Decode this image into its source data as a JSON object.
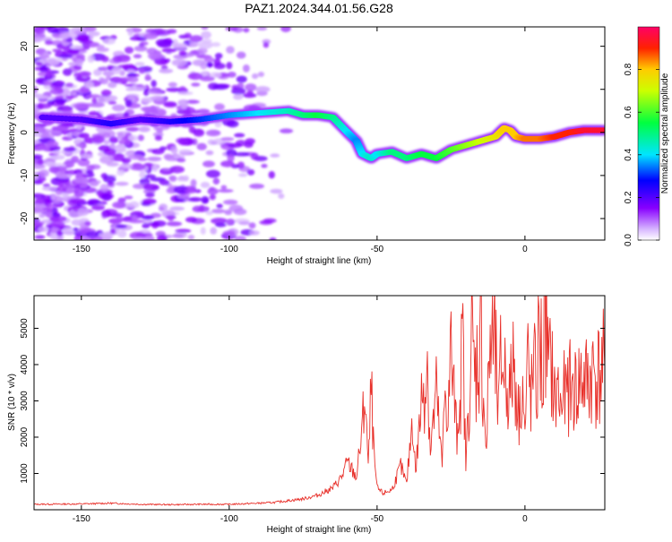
{
  "title": "PAZ1.2024.344.01.56.G28",
  "chart_data": [
    {
      "type": "heatmap",
      "name": "spectrogram",
      "xlabel": "Height of straight line (km)",
      "ylabel": "Frequency (Hz)",
      "xlim": [
        -166,
        27
      ],
      "ylim": [
        -25,
        24.5
      ],
      "xticks": [
        -150,
        -100,
        -50,
        0
      ],
      "yticks": [
        -20,
        -10,
        0,
        10,
        20
      ],
      "colorbar": {
        "label": "Normalized spectral amplitude",
        "range": [
          0,
          1
        ],
        "ticks": [
          0.0,
          0.2,
          0.4,
          0.6,
          0.8
        ]
      },
      "ridge": {
        "x": [
          -163,
          -150,
          -140,
          -130,
          -120,
          -110,
          -100,
          -90,
          -80,
          -75,
          -70,
          -65,
          -60,
          -57,
          -55,
          -52,
          -50,
          -45,
          -40,
          -35,
          -30,
          -25,
          -20,
          -15,
          -10,
          -7,
          -5,
          -3,
          0,
          5,
          10,
          15,
          20,
          27
        ],
        "freq": [
          3.5,
          3,
          2,
          3,
          2.5,
          3,
          4,
          4.5,
          5,
          4,
          4,
          3.5,
          0,
          -2,
          -5,
          -6,
          -5,
          -4.5,
          -6,
          -5,
          -6,
          -4,
          -3,
          -2,
          -1,
          1,
          0.5,
          -1,
          -1.5,
          -1.5,
          -1,
          0,
          0.5,
          0.5
        ],
        "amplitude": [
          0.2,
          0.2,
          0.25,
          0.2,
          0.25,
          0.3,
          0.35,
          0.4,
          0.45,
          0.5,
          0.55,
          0.5,
          0.4,
          0.35,
          0.4,
          0.45,
          0.4,
          0.5,
          0.5,
          0.55,
          0.55,
          0.6,
          0.65,
          0.7,
          0.75,
          0.8,
          0.8,
          0.8,
          0.85,
          0.85,
          0.9,
          0.9,
          0.95,
          0.95
        ]
      }
    },
    {
      "type": "line",
      "name": "snr",
      "xlabel": "Height of straight line (km)",
      "ylabel": "SNR (10 * v/v)",
      "xlim": [
        -166,
        27
      ],
      "ylim": [
        0,
        5900
      ],
      "xticks": [
        -150,
        -100,
        -50,
        0
      ],
      "yticks": [
        1000,
        2000,
        3000,
        4000,
        5000
      ],
      "color": "#e8302a",
      "x": [
        -166,
        -150,
        -140,
        -130,
        -120,
        -110,
        -100,
        -90,
        -85,
        -80,
        -75,
        -70,
        -65,
        -62,
        -60,
        -57,
        -55,
        -54,
        -53,
        -52,
        -51,
        -50,
        -48,
        -45,
        -42,
        -40,
        -38,
        -37,
        -35,
        -33,
        -32,
        -30,
        -28,
        -27,
        -26,
        -25,
        -23,
        -21,
        -20,
        -18,
        -17,
        -15,
        -13,
        -12,
        -10,
        -9,
        -8,
        -6,
        -5,
        -4,
        -3,
        -2,
        -1,
        0,
        1,
        2,
        3,
        4,
        5,
        6,
        7,
        8,
        9,
        10,
        11,
        12,
        13,
        14,
        15,
        17,
        19,
        21,
        23,
        25,
        27
      ],
      "y": [
        150,
        160,
        180,
        150,
        140,
        150,
        150,
        180,
        200,
        250,
        300,
        400,
        600,
        900,
        1300,
        900,
        2200,
        3350,
        1100,
        3300,
        1400,
        600,
        450,
        550,
        1200,
        700,
        2600,
        1000,
        3000,
        4150,
        1600,
        3200,
        1200,
        3400,
        2600,
        4300,
        2000,
        4500,
        1200,
        4700,
        3600,
        4900,
        1500,
        4600,
        4300,
        2500,
        4300,
        3500,
        3100,
        4200,
        3600,
        2400,
        3900,
        2000,
        4100,
        3000,
        3800,
        3300,
        5100,
        3400,
        5900,
        3600,
        4100,
        3000,
        3400,
        2800,
        3200,
        3100,
        3400,
        3300,
        3600,
        3500,
        3800,
        3700,
        3900
      ]
    }
  ]
}
